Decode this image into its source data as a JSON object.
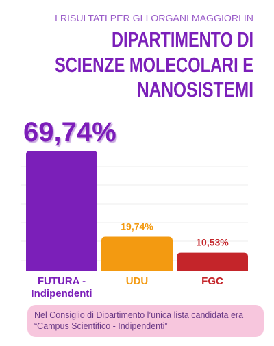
{
  "chart_data": {
    "type": "bar",
    "subtitle": "I RISULTATI PER GLI ORGANI MAGGIORI IN",
    "title": [
      "DIPARTIMENTO DI",
      "SCIENZE MOLECOLARI E",
      "NANOSISTEMI"
    ],
    "categories": [
      "FUTURA - Indipendenti",
      "UDU",
      "FGC"
    ],
    "values": [
      69.74,
      19.74,
      10.53
    ],
    "value_labels": [
      "69,74%",
      "19,74%",
      "10,53%"
    ],
    "colors": [
      "#7b1fb9",
      "#f39a11",
      "#c4252a"
    ],
    "note": "Nel Consiglio di Dipartimento l’unica lista candidata era “Campus Scientifico - Indipendenti”"
  }
}
